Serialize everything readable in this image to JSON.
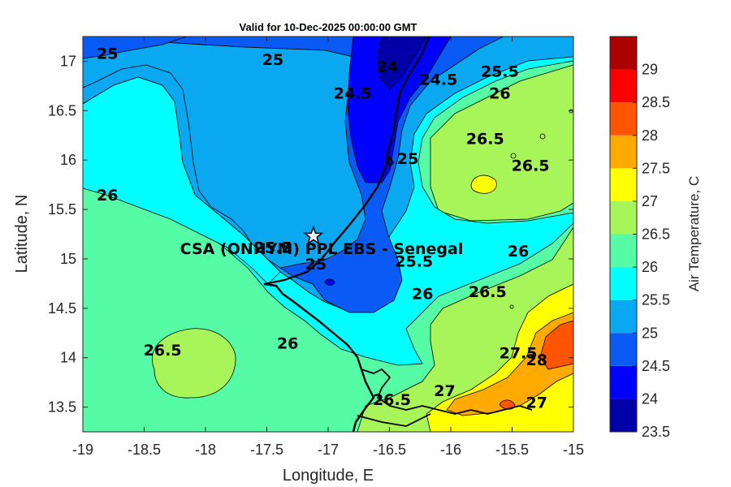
{
  "title": "Valid for 10-Dec-2025 00:00:00 GMT",
  "xlabel": "Longitude, E",
  "ylabel": "Latitude, N",
  "colorbar_label": "Air Temperature, C",
  "site": {
    "name": "CSA (ONHYM) PPL EBS  - Senegal",
    "lon": -17.12,
    "lat": 15.23,
    "marker": "star-icon"
  },
  "x_ticks": [
    {
      "value": -19,
      "label": "-19"
    },
    {
      "value": -18.5,
      "label": "-18.5"
    },
    {
      "value": -18,
      "label": "-18"
    },
    {
      "value": -17.5,
      "label": "-17.5"
    },
    {
      "value": -17,
      "label": "-17"
    },
    {
      "value": -16.5,
      "label": "-16.5"
    },
    {
      "value": -16,
      "label": "-16"
    },
    {
      "value": -15.5,
      "label": "-15.5"
    },
    {
      "value": -15,
      "label": "-15"
    }
  ],
  "y_ticks": [
    {
      "value": 17,
      "label": "17"
    },
    {
      "value": 16.5,
      "label": "16.5"
    },
    {
      "value": 16,
      "label": "16"
    },
    {
      "value": 15.5,
      "label": "15.5"
    },
    {
      "value": 15,
      "label": "15"
    },
    {
      "value": 14.5,
      "label": "14.5"
    },
    {
      "value": 14,
      "label": "14"
    },
    {
      "value": 13.5,
      "label": "13.5"
    }
  ],
  "colorbar": {
    "levels": [
      {
        "lo": 23.5,
        "hi": 24,
        "color": "#0000a8"
      },
      {
        "lo": 24,
        "hi": 24.5,
        "color": "#0000ff"
      },
      {
        "lo": 24.5,
        "hi": 25,
        "color": "#0a5af5"
      },
      {
        "lo": 25,
        "hi": 25.5,
        "color": "#0aa8f0"
      },
      {
        "lo": 25.5,
        "hi": 26,
        "color": "#00ffff"
      },
      {
        "lo": 26,
        "hi": 26.5,
        "color": "#55fba5"
      },
      {
        "lo": 26.5,
        "hi": 27,
        "color": "#a8f55a"
      },
      {
        "lo": 27,
        "hi": 27.5,
        "color": "#ffff00"
      },
      {
        "lo": 27.5,
        "hi": 28,
        "color": "#ffaa00"
      },
      {
        "lo": 28,
        "hi": 28.5,
        "color": "#ff5500"
      },
      {
        "lo": 28.5,
        "hi": 29,
        "color": "#ff0000"
      },
      {
        "lo": 29,
        "hi": 29.5,
        "color": "#aa0000"
      }
    ],
    "ticks": [
      "23.5",
      "24",
      "24.5",
      "25",
      "25.5",
      "26",
      "26.5",
      "27",
      "27.5",
      "28",
      "28.5",
      "29"
    ]
  },
  "contour_labels": [
    {
      "text": "25",
      "lon": -18.8,
      "lat": 17.08
    },
    {
      "text": "25",
      "lon": -17.45,
      "lat": 17.02
    },
    {
      "text": "24.5",
      "lon": -16.8,
      "lat": 16.68
    },
    {
      "text": "24",
      "lon": -16.52,
      "lat": 16.95
    },
    {
      "text": "24.5",
      "lon": -16.1,
      "lat": 16.82
    },
    {
      "text": "25.5",
      "lon": -15.6,
      "lat": 16.9
    },
    {
      "text": "26",
      "lon": -15.6,
      "lat": 16.68
    },
    {
      "text": "25",
      "lon": -16.35,
      "lat": 16.02
    },
    {
      "text": "26.5",
      "lon": -15.72,
      "lat": 16.22
    },
    {
      "text": "26.5",
      "lon": -15.35,
      "lat": 15.95
    },
    {
      "text": "26",
      "lon": -18.8,
      "lat": 15.65
    },
    {
      "text": "25.5",
      "lon": -17.45,
      "lat": 15.12
    },
    {
      "text": "25",
      "lon": -17.1,
      "lat": 14.95
    },
    {
      "text": "25.5",
      "lon": -16.3,
      "lat": 14.98
    },
    {
      "text": "26",
      "lon": -15.45,
      "lat": 15.08
    },
    {
      "text": "26",
      "lon": -16.23,
      "lat": 14.65
    },
    {
      "text": "26.5",
      "lon": -15.7,
      "lat": 14.67
    },
    {
      "text": "26.5",
      "lon": -18.35,
      "lat": 14.08
    },
    {
      "text": "26",
      "lon": -17.33,
      "lat": 14.15
    },
    {
      "text": "27.5",
      "lon": -15.45,
      "lat": 14.05
    },
    {
      "text": "28",
      "lon": -15.3,
      "lat": 13.98
    },
    {
      "text": "26.5",
      "lon": -16.48,
      "lat": 13.58
    },
    {
      "text": "27",
      "lon": -16.05,
      "lat": 13.67
    },
    {
      "text": "27",
      "lon": -15.3,
      "lat": 13.55
    }
  ]
}
